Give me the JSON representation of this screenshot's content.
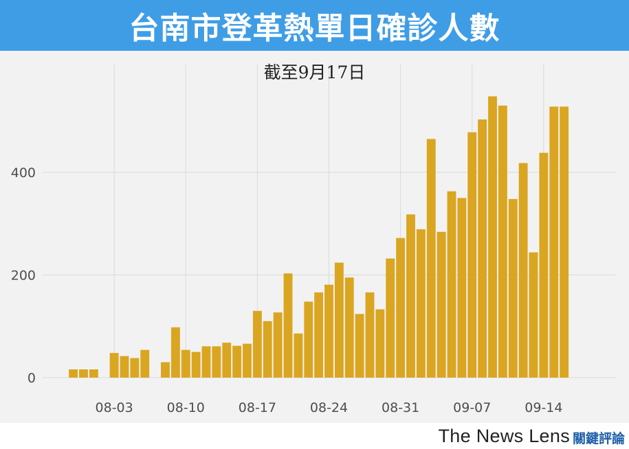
{
  "header": {
    "title": "台南市登革熱單日確診人數",
    "bg_color": "#3f9de6"
  },
  "subtitle": "截至9月17日",
  "footer": {
    "brand": "The News Lens",
    "brand_cn": "關鍵評論"
  },
  "chart_data": {
    "type": "bar",
    "title": "台南市登革熱單日確診人數",
    "subtitle": "截至9月17日",
    "xlabel": "",
    "ylabel": "",
    "bar_color": "#daa520",
    "grid": true,
    "ylim": [
      0,
      610
    ],
    "yticks": [
      0,
      200,
      400
    ],
    "x_tick_labels": [
      "08-03",
      "08-10",
      "08-17",
      "08-24",
      "08-31",
      "09-07",
      "09-14"
    ],
    "x_tick_dates": [
      "2015-08-03",
      "2015-08-10",
      "2015-08-17",
      "2015-08-24",
      "2015-08-31",
      "2015-09-07",
      "2015-09-14"
    ],
    "x_range": [
      "2015-07-27",
      "2015-09-21"
    ],
    "dates": [
      "2015-07-30",
      "2015-07-31",
      "2015-08-01",
      "2015-08-02",
      "2015-08-03",
      "2015-08-04",
      "2015-08-05",
      "2015-08-06",
      "2015-08-07",
      "2015-08-08",
      "2015-08-09",
      "2015-08-10",
      "2015-08-11",
      "2015-08-12",
      "2015-08-13",
      "2015-08-14",
      "2015-08-15",
      "2015-08-16",
      "2015-08-17",
      "2015-08-18",
      "2015-08-19",
      "2015-08-20",
      "2015-08-21",
      "2015-08-22",
      "2015-08-23",
      "2015-08-24",
      "2015-08-25",
      "2015-08-26",
      "2015-08-27",
      "2015-08-28",
      "2015-08-29",
      "2015-08-30",
      "2015-08-31",
      "2015-09-01",
      "2015-09-02",
      "2015-09-03",
      "2015-09-04",
      "2015-09-05",
      "2015-09-06",
      "2015-09-07",
      "2015-09-08",
      "2015-09-09",
      "2015-09-10",
      "2015-09-11",
      "2015-09-12",
      "2015-09-13",
      "2015-09-14",
      "2015-09-15",
      "2015-09-16",
      "2015-09-17"
    ],
    "values": [
      16,
      16,
      16,
      0,
      48,
      42,
      38,
      54,
      0,
      30,
      98,
      54,
      50,
      61,
      61,
      68,
      62,
      66,
      130,
      110,
      127,
      203,
      86,
      148,
      166,
      181,
      224,
      195,
      124,
      166,
      133,
      232,
      272,
      318,
      289,
      465,
      284,
      363,
      350,
      478,
      503,
      548,
      530,
      348,
      418,
      244,
      438,
      528,
      528,
      0
    ]
  }
}
